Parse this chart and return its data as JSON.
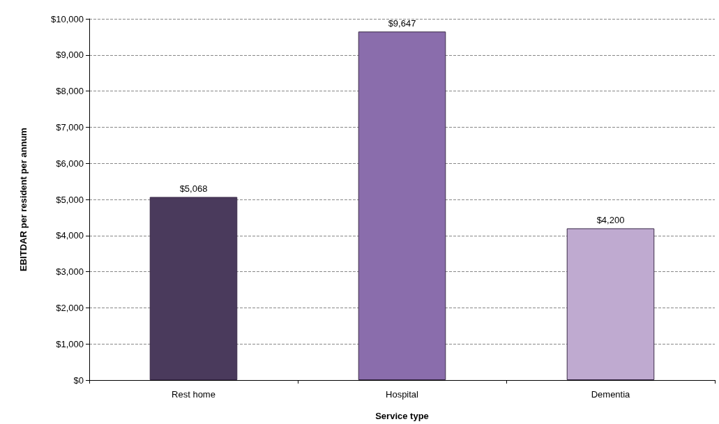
{
  "chart_data": {
    "type": "bar",
    "xlabel": "Service type",
    "ylabel": "EBITDAR per resident per annum",
    "categories": [
      "Rest home",
      "Hospital",
      "Dementia"
    ],
    "values": [
      5068,
      9647,
      4200
    ],
    "colors": [
      "#4a3a5c",
      "#8a6dac",
      "#bfaad0"
    ],
    "value_labels": [
      "$5,068",
      "$9,647",
      "$4,200"
    ],
    "ylim": [
      0,
      10000
    ],
    "yticks": [
      {
        "value": 0,
        "label": "$0"
      },
      {
        "value": 1000,
        "label": "$1,000"
      },
      {
        "value": 2000,
        "label": "$2,000"
      },
      {
        "value": 3000,
        "label": "$3,000"
      },
      {
        "value": 4000,
        "label": "$4,000"
      },
      {
        "value": 5000,
        "label": "$5,000"
      },
      {
        "value": 6000,
        "label": "$6,000"
      },
      {
        "value": 7000,
        "label": "$7,000"
      },
      {
        "value": 8000,
        "label": "$8,000"
      },
      {
        "value": 9000,
        "label": "$9,000"
      },
      {
        "value": 10000,
        "label": "$10,000"
      }
    ],
    "grid": "y"
  }
}
